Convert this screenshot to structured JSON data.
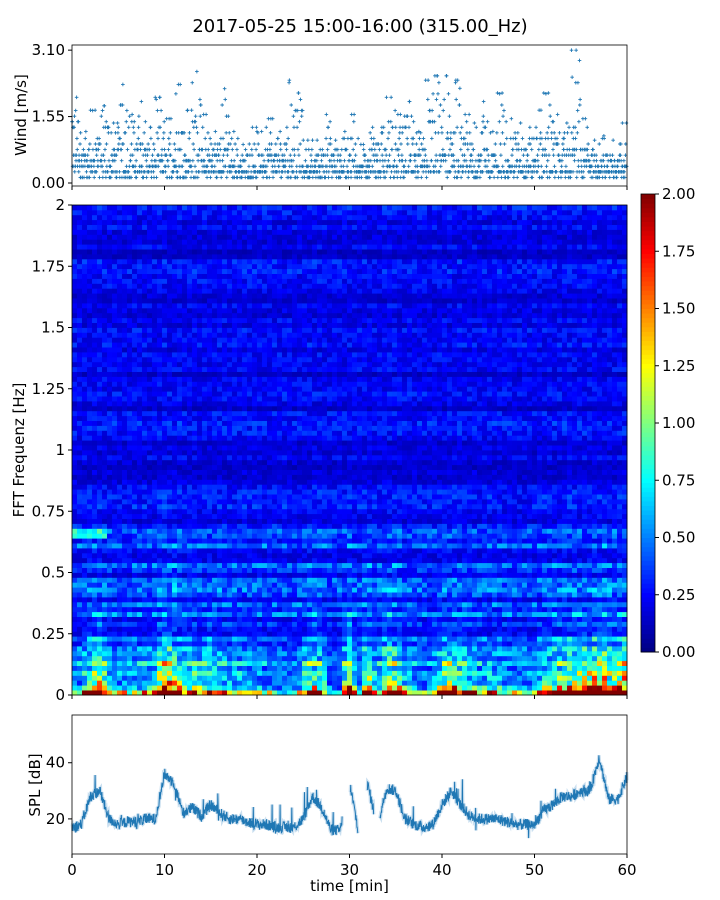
{
  "title": "2017-05-25 15:00-16:00 (315.00_Hz)",
  "chart_data": [
    {
      "type": "scatter",
      "ylabel": "Wind [m/s]",
      "ylim": [
        -0.07,
        3.22
      ],
      "xlim": [
        0,
        60
      ],
      "yticks": [
        "0.00",
        "1.55",
        "3.10"
      ],
      "ytick_values": [
        0,
        1.55,
        3.1
      ],
      "marker": "+",
      "color": "#1f77b4",
      "per_minute_max_wind": [
        2.0,
        1.2,
        1.7,
        1.8,
        1.4,
        2.3,
        1.6,
        1.9,
        1.3,
        2.0,
        1.5,
        2.3,
        1.7,
        2.6,
        1.6,
        1.2,
        2.2,
        1.2,
        0.9,
        1.3,
        1.2,
        1.5,
        1.2,
        2.4,
        2.1,
        1.0,
        1.0,
        1.6,
        1.0,
        1.2,
        1.6,
        0.9,
        1.3,
        1.3,
        2.0,
        1.6,
        1.9,
        1.2,
        2.4,
        2.5,
        2.5,
        2.4,
        1.6,
        1.4,
        1.9,
        1.2,
        2.1,
        1.5,
        1.4,
        1.3,
        1.7,
        2.1,
        1.6,
        1.4,
        3.1,
        1.5,
        1.0,
        1.1,
        1.0,
        1.4
      ]
    },
    {
      "type": "heatmap",
      "ylabel": "FFT Frequenz [Hz]",
      "ylim": [
        0,
        2
      ],
      "xlim": [
        0,
        60
      ],
      "yticks": [
        "0",
        "0.25",
        "0.5",
        "0.75",
        "1",
        "1.25",
        "1.5",
        "1.75",
        "2"
      ],
      "ytick_values": [
        0,
        0.25,
        0.5,
        0.75,
        1,
        1.25,
        1.5,
        1.75,
        2
      ],
      "colormap": "jet",
      "color_range": [
        0,
        2
      ],
      "colorbar_ticks": [
        "0.00",
        "0.25",
        "0.50",
        "0.75",
        "1.00",
        "1.25",
        "1.50",
        "1.75",
        "2.00"
      ],
      "colorbar_tick_values": [
        0,
        0.25,
        0.5,
        0.75,
        1,
        1.25,
        1.5,
        1.75,
        2
      ]
    },
    {
      "type": "line",
      "ylabel": "SPL [dB]",
      "xlabel": "time [min]",
      "xlim": [
        0,
        60
      ],
      "ylim": [
        7.5,
        57
      ],
      "yticks": [
        "20",
        "40"
      ],
      "ytick_values": [
        20,
        40
      ],
      "xticks": [
        "0",
        "10",
        "20",
        "30",
        "40",
        "50",
        "60"
      ],
      "xtick_values": [
        0,
        10,
        20,
        30,
        40,
        50,
        60
      ],
      "color": "#1f77b4",
      "x": [
        0,
        1,
        2,
        3,
        4,
        5,
        6,
        7,
        8,
        9,
        10,
        11,
        12,
        13,
        14,
        15,
        16,
        17,
        18,
        19,
        20,
        21,
        22,
        23,
        24,
        25,
        26,
        27,
        28,
        29,
        30,
        31,
        32,
        33,
        34,
        35,
        36,
        37,
        38,
        39,
        40,
        41,
        42,
        43,
        44,
        45,
        46,
        47,
        48,
        49,
        50,
        51,
        52,
        53,
        54,
        55,
        56,
        57,
        58,
        59,
        60
      ],
      "y": [
        17,
        18,
        28,
        30,
        20,
        18,
        19,
        19,
        20,
        20,
        36,
        33,
        22,
        24,
        21,
        25,
        22,
        20,
        20,
        19,
        18,
        18,
        17,
        17,
        17,
        20,
        28,
        24,
        16,
        16,
        33,
        15,
        32,
        17,
        31,
        30,
        20,
        18,
        17,
        18,
        25,
        30,
        25,
        21,
        20,
        20,
        20,
        19,
        18,
        18,
        18,
        23,
        25,
        28,
        28,
        30,
        30,
        42,
        27,
        27,
        35
      ]
    }
  ]
}
